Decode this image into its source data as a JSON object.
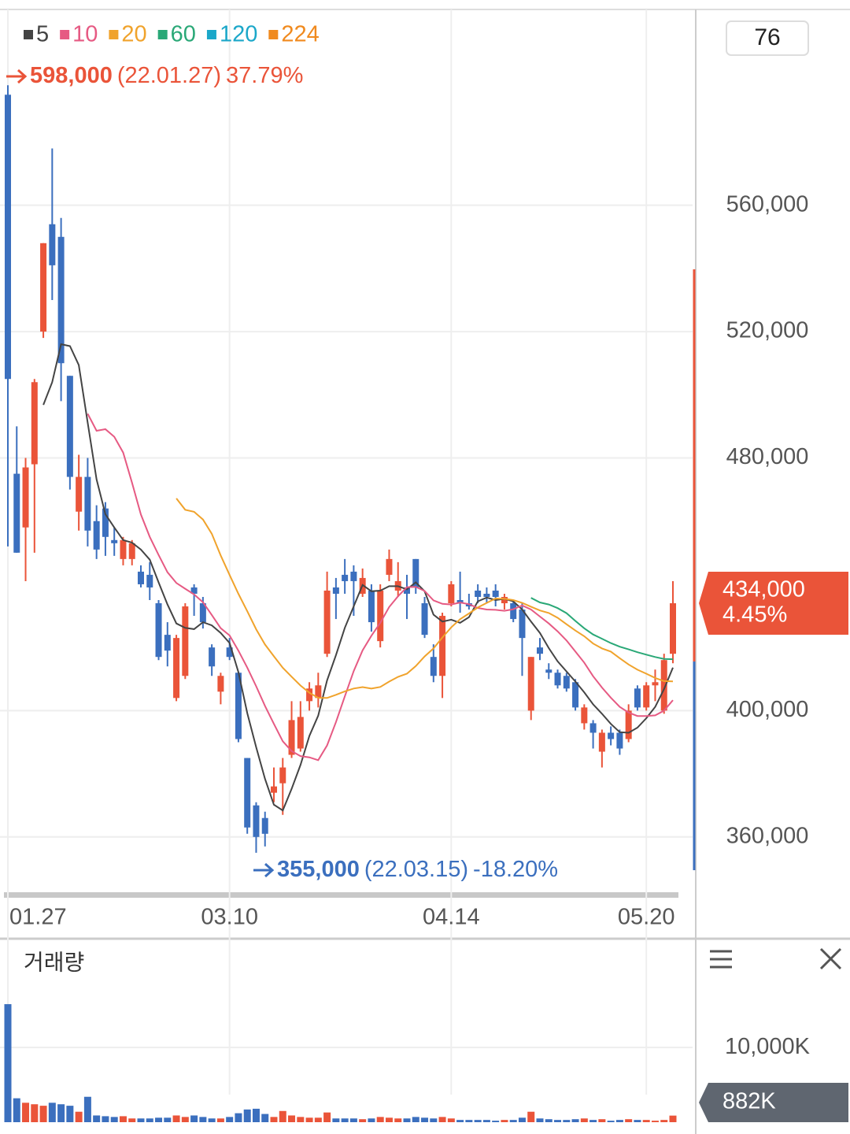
{
  "chart_data": [
    {
      "type": "candlestick",
      "period": "76",
      "up_color": "#ea5439",
      "down_color": "#3b6fbe",
      "moving_averages": [
        {
          "name": "5",
          "color": "#444444"
        },
        {
          "name": "10",
          "color": "#e65a83"
        },
        {
          "name": "20",
          "color": "#f0a32c"
        },
        {
          "name": "60",
          "color": "#2aa877"
        },
        {
          "name": "120",
          "color": "#1ba7c9"
        },
        {
          "name": "224",
          "color": "#f08a1e"
        }
      ],
      "categories": [
        "01.27",
        null,
        null,
        null,
        null,
        null,
        null,
        null,
        null,
        null,
        null,
        null,
        null,
        null,
        null,
        null,
        null,
        null,
        null,
        null,
        null,
        null,
        null,
        null,
        null,
        "03.10",
        null,
        null,
        null,
        null,
        null,
        null,
        null,
        null,
        null,
        null,
        null,
        null,
        null,
        null,
        null,
        null,
        null,
        null,
        null,
        null,
        null,
        null,
        null,
        null,
        "04.14",
        null,
        null,
        null,
        null,
        null,
        null,
        null,
        null,
        null,
        null,
        null,
        null,
        null,
        null,
        null,
        null,
        null,
        null,
        null,
        null,
        null,
        "05.20",
        null,
        null,
        null
      ],
      "open": [
        595000,
        475000,
        458000,
        478000,
        520000,
        554000,
        550000,
        506000,
        463000,
        474000,
        460000,
        464000,
        454000,
        448000,
        448000,
        444000,
        443000,
        434000,
        424000,
        404000,
        411000,
        439000,
        434000,
        420000,
        406000,
        420000,
        412000,
        385000,
        370000,
        366000,
        374000,
        377000,
        386000,
        388000,
        403000,
        404000,
        418000,
        439000,
        443000,
        444000,
        437000,
        438000,
        422000,
        443000,
        438000,
        439000,
        448000,
        434000,
        417000,
        411000,
        434000,
        435000,
        434000,
        438000,
        437000,
        438000,
        434000,
        434000,
        432000,
        400000,
        420000,
        413000,
        412000,
        411000,
        409000,
        396000,
        396000,
        387000,
        393000,
        393000,
        391000,
        407000,
        401000,
        408000,
        400000,
        418000
      ],
      "high": [
        598000,
        490000,
        480000,
        505000,
        548000,
        578000,
        556000,
        506000,
        481000,
        480000,
        465000,
        466000,
        458000,
        455000,
        454000,
        446000,
        447000,
        435000,
        428000,
        424000,
        434000,
        440000,
        436000,
        421000,
        412000,
        423000,
        412000,
        385000,
        371000,
        368000,
        382000,
        385000,
        403000,
        403000,
        409000,
        412000,
        444000,
        442000,
        448000,
        446000,
        445000,
        440000,
        440000,
        451000,
        447000,
        443000,
        448000,
        436000,
        421000,
        431000,
        441000,
        444000,
        437000,
        440000,
        439000,
        440000,
        437000,
        435000,
        434000,
        417000,
        423000,
        415000,
        413000,
        412000,
        410000,
        402000,
        397000,
        394000,
        395000,
        394000,
        402000,
        408000,
        409000,
        413000,
        418000,
        441000
      ],
      "low": [
        452000,
        450000,
        441000,
        450000,
        518000,
        530000,
        498000,
        470000,
        457000,
        452000,
        448000,
        449000,
        449000,
        446000,
        446000,
        439000,
        435000,
        416000,
        414000,
        403000,
        410000,
        430000,
        426000,
        411000,
        402000,
        416000,
        390000,
        361000,
        355000,
        357000,
        371000,
        367000,
        385000,
        387000,
        400000,
        401000,
        417000,
        429000,
        437000,
        430000,
        436000,
        425000,
        420000,
        441000,
        436000,
        429000,
        437000,
        423000,
        409000,
        404000,
        433000,
        431000,
        432000,
        434000,
        434000,
        433000,
        432000,
        428000,
        411000,
        397000,
        416000,
        410000,
        407000,
        406000,
        400000,
        394000,
        388000,
        382000,
        389000,
        386000,
        390000,
        400000,
        400000,
        403000,
        399000,
        415000
      ],
      "close": [
        505000,
        450000,
        477000,
        504000,
        548000,
        541000,
        510000,
        474000,
        474000,
        457000,
        451000,
        455000,
        453000,
        454000,
        453000,
        440000,
        439000,
        417000,
        419000,
        423000,
        433000,
        437000,
        428000,
        414000,
        411000,
        417000,
        391000,
        363000,
        360000,
        361000,
        376000,
        382000,
        397000,
        398000,
        407000,
        408000,
        438000,
        437000,
        441000,
        441000,
        442000,
        428000,
        438000,
        448000,
        441000,
        437000,
        439000,
        424000,
        411000,
        430000,
        440000,
        434000,
        433000,
        436000,
        436000,
        436000,
        436000,
        429000,
        423000,
        417000,
        418000,
        412000,
        408000,
        407000,
        401000,
        401000,
        393000,
        393000,
        391000,
        388000,
        400000,
        401000,
        408000,
        409000,
        416000,
        434000
      ],
      "ylim": [
        342000,
        622000
      ],
      "yticks": [
        {
          "value": 360000,
          "label": "360,000"
        },
        {
          "value": 400000,
          "label": "400,000"
        },
        {
          "value": 480000,
          "label": "480,000"
        },
        {
          "value": 520000,
          "label": "520,000"
        },
        {
          "value": 560000,
          "label": "560,000"
        }
      ],
      "high_marker": {
        "index": 0,
        "value": 598000,
        "label": "598,000",
        "date": "(22.01.27)",
        "change": "37.79%"
      },
      "low_marker": {
        "index": 28,
        "value": 355000,
        "label": "355,000",
        "date": "(22.03.15)",
        "change": "-18.20%"
      },
      "current": {
        "value": 434000,
        "label": "434,000",
        "change": "4.45%"
      }
    },
    {
      "type": "bar",
      "title": "거래량",
      "values": [
        15800,
        3200,
        2600,
        2400,
        2200,
        2600,
        2400,
        2200,
        1400,
        3400,
        900,
        800,
        700,
        800,
        500,
        500,
        500,
        600,
        600,
        900,
        700,
        900,
        700,
        500,
        500,
        700,
        1200,
        1700,
        1800,
        1100,
        700,
        1500,
        900,
        700,
        600,
        600,
        1300,
        500,
        500,
        500,
        400,
        500,
        700,
        600,
        500,
        500,
        700,
        600,
        500,
        700,
        500,
        300,
        300,
        300,
        300,
        200,
        300,
        300,
        600,
        1400,
        500,
        400,
        300,
        300,
        400,
        500,
        300,
        400,
        200,
        300,
        400,
        300,
        300,
        200,
        300,
        882
      ],
      "ylim": [
        0,
        19500
      ],
      "yticks": [
        {
          "value": 10000,
          "label": "10,000K"
        }
      ],
      "current": {
        "value": 882,
        "label": "882K"
      }
    }
  ]
}
